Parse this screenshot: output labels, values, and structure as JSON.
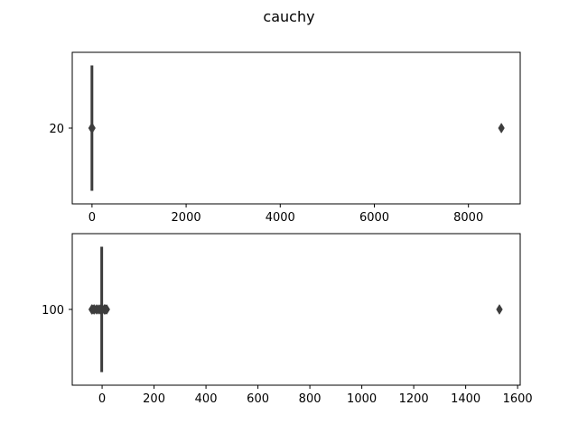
{
  "title": "cauchy",
  "chart_data": [
    {
      "type": "boxplot",
      "orientation": "horizontal",
      "category_label": "20",
      "xlim": [
        -420,
        9100
      ],
      "xticks": [
        0,
        2000,
        4000,
        6000,
        8000
      ],
      "box": {
        "q1": -1.5,
        "median": 0,
        "q3": 1.5
      },
      "whiskers": [
        -4,
        4
      ],
      "outliers": [
        -9,
        -6,
        7,
        8700
      ],
      "color": "#3d3d3d"
    },
    {
      "type": "boxplot",
      "orientation": "horizontal",
      "category_label": "100",
      "xlim": [
        -115,
        1610
      ],
      "xticks": [
        0,
        200,
        400,
        600,
        800,
        1000,
        1200,
        1400,
        1600
      ],
      "box": {
        "q1": -1.5,
        "median": 0,
        "q3": 1.5
      },
      "whiskers": [
        -5,
        5
      ],
      "outliers": [
        -40,
        -35,
        -30,
        -22,
        -15,
        -8,
        8,
        10,
        13,
        18,
        1530
      ],
      "color": "#3d3d3d"
    }
  ]
}
